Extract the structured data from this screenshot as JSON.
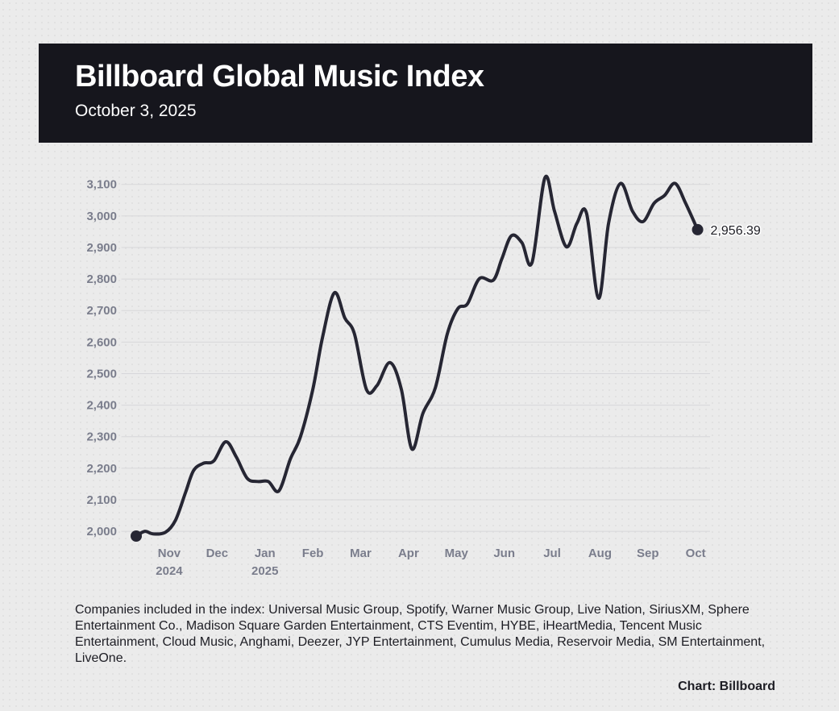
{
  "chart_data": {
    "type": "line",
    "title": "Billboard Global Music Index",
    "subtitle": "October 3, 2025",
    "x": [
      0.31,
      0.49,
      0.66,
      0.92,
      1.13,
      1.34,
      1.51,
      1.72,
      1.93,
      2.18,
      2.4,
      2.63,
      2.85,
      3.07,
      3.29,
      3.53,
      3.74,
      4.0,
      4.2,
      4.45,
      4.67,
      4.87,
      5.12,
      5.34,
      5.61,
      5.85,
      6.07,
      6.3,
      6.56,
      6.81,
      7.03,
      7.23,
      7.48,
      7.77,
      7.95,
      8.15,
      8.37,
      8.58,
      8.85,
      9.05,
      9.3,
      9.52,
      9.72,
      9.97,
      10.18,
      10.43,
      10.68,
      10.9,
      11.13,
      11.35,
      11.57,
      11.79,
      12.04
    ],
    "series": [
      {
        "name": "Billboard Global Music Index",
        "color": "#262633",
        "values": [
          1985,
          2000,
          1992,
          1997,
          2035,
          2123,
          2193,
          2216,
          2223,
          2284,
          2236,
          2168,
          2158,
          2158,
          2128,
          2229,
          2299,
          2450,
          2613,
          2756,
          2676,
          2626,
          2450,
          2462,
          2535,
          2450,
          2261,
          2374,
          2455,
          2626,
          2706,
          2721,
          2801,
          2796,
          2864,
          2937,
          2915,
          2852,
          3121,
          3015,
          2902,
          2977,
          3008,
          2739,
          2977,
          3103,
          3015,
          2982,
          3040,
          3065,
          3103,
          3040,
          2956.39
        ],
        "last_value_label": "2,956.39"
      }
    ],
    "xlim": [
      0,
      12.3
    ],
    "xticks": [
      {
        "value": 1,
        "label": "Nov",
        "sublabel": "2024"
      },
      {
        "value": 2,
        "label": "Dec"
      },
      {
        "value": 3,
        "label": "Jan",
        "sublabel": "2025"
      },
      {
        "value": 4,
        "label": "Feb"
      },
      {
        "value": 5,
        "label": "Mar"
      },
      {
        "value": 6,
        "label": "Apr"
      },
      {
        "value": 7,
        "label": "May"
      },
      {
        "value": 8,
        "label": "Jun"
      },
      {
        "value": 9,
        "label": "Jul"
      },
      {
        "value": 10,
        "label": "Aug"
      },
      {
        "value": 11,
        "label": "Sep"
      },
      {
        "value": 12,
        "label": "Oct"
      }
    ],
    "ylim": [
      1985,
      3135
    ],
    "yticks": [
      {
        "value": 2000,
        "label": "2,000"
      },
      {
        "value": 2100,
        "label": "2,100"
      },
      {
        "value": 2200,
        "label": "2,200"
      },
      {
        "value": 2300,
        "label": "2,300"
      },
      {
        "value": 2400,
        "label": "2,400"
      },
      {
        "value": 2500,
        "label": "2,500"
      },
      {
        "value": 2600,
        "label": "2,600"
      },
      {
        "value": 2700,
        "label": "2,700"
      },
      {
        "value": 2800,
        "label": "2,800"
      },
      {
        "value": 2900,
        "label": "2,900"
      },
      {
        "value": 3000,
        "label": "3,000"
      },
      {
        "value": 3100,
        "label": "3,100"
      }
    ],
    "grid": true,
    "note": "Companies included in the index: Universal Music Group, Spotify, Warner Music Group, Live Nation, SiriusXM, Sphere Entertainment Co., Madison Square Garden Entertainment, CTS Eventim, HYBE, iHeartMedia, Tencent Music Entertainment, Cloud Music, Anghami, Deezer, JYP Entertainment, Cumulus Media, Reservoir Media, SM Entertainment, LiveOne.",
    "credit": "Chart: Billboard"
  }
}
